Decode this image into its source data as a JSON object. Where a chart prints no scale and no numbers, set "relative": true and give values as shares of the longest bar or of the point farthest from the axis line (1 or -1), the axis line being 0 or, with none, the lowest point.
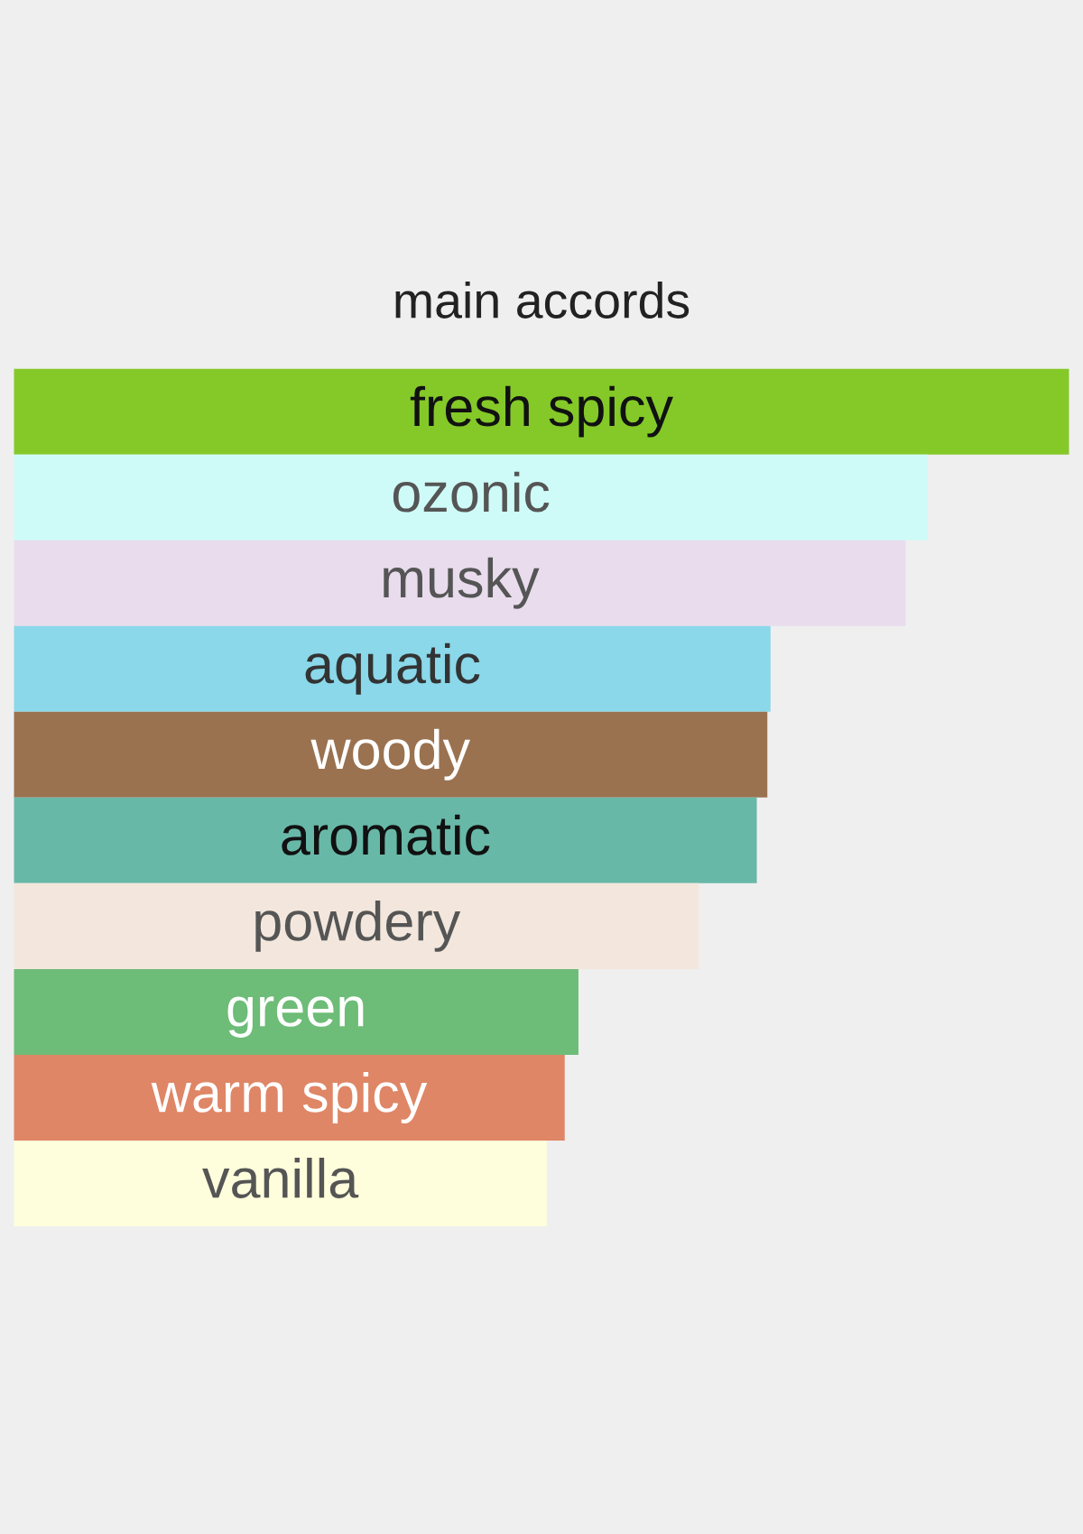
{
  "chart_data": {
    "type": "bar",
    "orientation": "horizontal",
    "relative": true,
    "title": "main accords",
    "categories": [
      "fresh spicy",
      "ozonic",
      "musky",
      "aquatic",
      "woody",
      "aromatic",
      "powdery",
      "green",
      "warm spicy",
      "vanilla"
    ],
    "values": [
      1,
      0.866,
      0.845,
      0.717,
      0.714,
      0.704,
      0.649,
      0.535,
      0.522,
      0.505
    ],
    "colors": [
      "#84c928",
      "#cefbf8",
      "#e8dced",
      "#8ad8ea",
      "#9a7250",
      "#68b8a8",
      "#f3e7dd",
      "#6dbc77",
      "#df8666",
      "#fefedc"
    ]
  }
}
